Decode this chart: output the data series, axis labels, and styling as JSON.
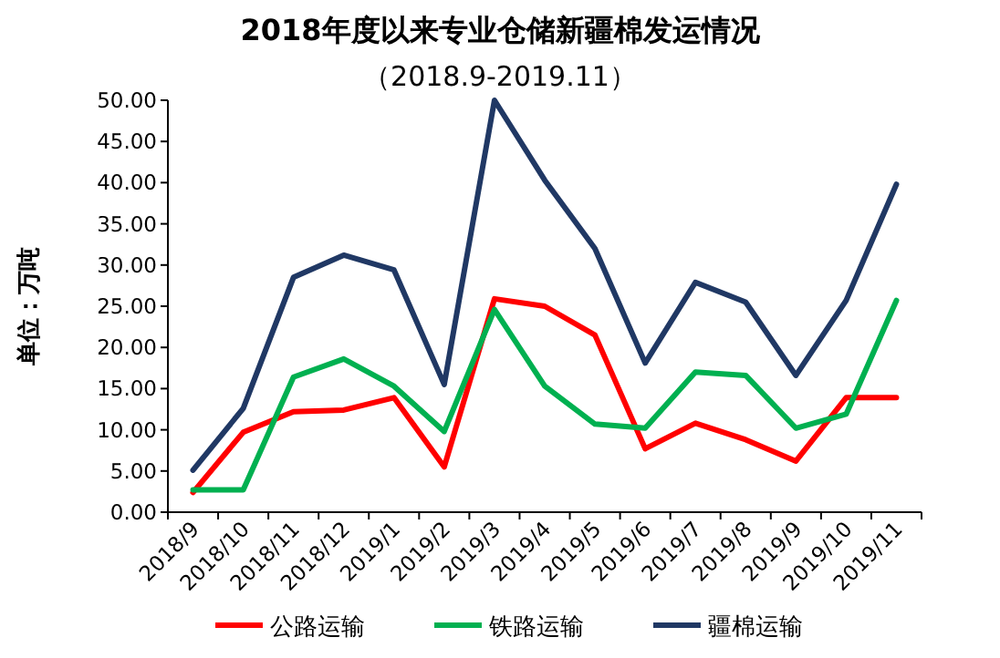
{
  "chart_data": {
    "type": "line",
    "title": "2018年度以来专业仓储新疆棉发运情况",
    "subtitle": "（2018.9-2019.11）",
    "ylabel": "单位：万吨",
    "categories": [
      "2018/9",
      "2018/10",
      "2018/11",
      "2018/12",
      "2019/1",
      "2019/2",
      "2019/3",
      "2019/4",
      "2019/5",
      "2019/6",
      "2019/7",
      "2019/8",
      "2019/9",
      "2019/10",
      "2019/11"
    ],
    "series": [
      {
        "name": "公路运输",
        "color": "#ff0000",
        "values": [
          2.4,
          9.7,
          12.2,
          12.4,
          13.9,
          5.5,
          25.9,
          25.0,
          21.5,
          7.7,
          10.8,
          8.8,
          6.2,
          13.9,
          13.9
        ]
      },
      {
        "name": "铁路运输",
        "color": "#00b050",
        "values": [
          2.7,
          2.7,
          16.4,
          18.6,
          15.3,
          9.8,
          24.6,
          15.3,
          10.7,
          10.2,
          17.0,
          16.6,
          10.2,
          11.9,
          25.7
        ]
      },
      {
        "name": "疆棉运输",
        "color": "#203864",
        "values": [
          5.1,
          12.6,
          28.5,
          31.2,
          29.4,
          15.5,
          50.0,
          40.3,
          32.0,
          18.1,
          27.9,
          25.5,
          16.6,
          25.7,
          39.8
        ]
      }
    ],
    "ylim": [
      0,
      50
    ],
    "yticks": [
      {
        "value": 0,
        "label": "0.00"
      },
      {
        "value": 5,
        "label": "5.00"
      },
      {
        "value": 10,
        "label": "10.00"
      },
      {
        "value": 15,
        "label": "15.00"
      },
      {
        "value": 20,
        "label": "20.00"
      },
      {
        "value": 25,
        "label": "25.00"
      },
      {
        "value": 30,
        "label": "30.00"
      },
      {
        "value": 35,
        "label": "35.00"
      },
      {
        "value": 40,
        "label": "40.00"
      },
      {
        "value": 45,
        "label": "45.00"
      },
      {
        "value": 50,
        "label": "50.00"
      }
    ],
    "grid": false,
    "legend": "bottom",
    "marker": "none",
    "line_style": "solid"
  }
}
